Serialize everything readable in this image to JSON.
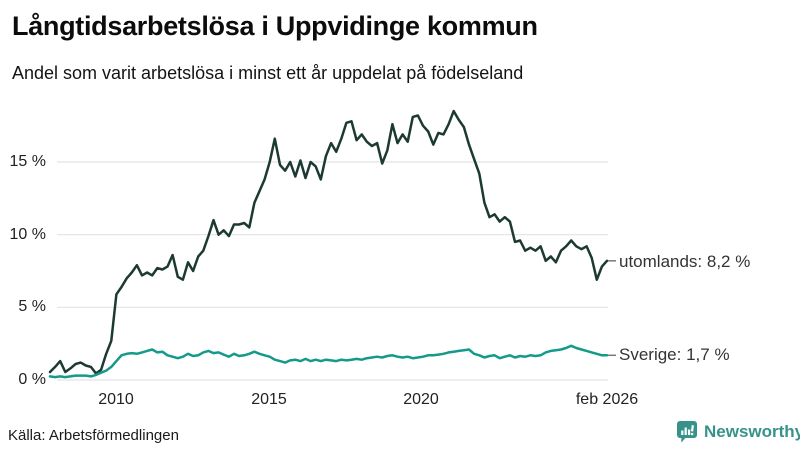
{
  "header": {
    "title": "Långtidsarbetslösa i Uppvidinge kommun",
    "subtitle": "Andel som varit arbetslösa i minst ett år uppdelat på födelseland"
  },
  "footer": {
    "source": "Källa: Arbetsförmedlingen",
    "brand_name": "Newsworthy",
    "brand_icon": "newsworthy-speech-bubble-bar-chart-icon"
  },
  "colors": {
    "utomlands_line": "#1c3a32",
    "sverige_line": "#149a89",
    "grid": "#e3e3e6",
    "axis_text": "#222222",
    "label_text": "#333333",
    "connector_dash": "#7a7a7a",
    "brand_teal": "#37928a",
    "background": "#ffffff"
  },
  "chart_data": {
    "type": "line",
    "title": "Långtidsarbetslösa i Uppvidinge kommun",
    "subtitle": "Andel som varit arbetslösa i minst ett år uppdelat på födelseland",
    "source": "Källa: Arbetsförmedlingen",
    "unit": "%",
    "grid": true,
    "legend_position": "end-of-line",
    "x_start": 2007.9,
    "x_step": 0.1667,
    "x_axis": {
      "range": [
        2007.9,
        2026.07
      ],
      "ticks": [
        {
          "x": 2010,
          "label": "2010"
        },
        {
          "x": 2015,
          "label": "2015"
        },
        {
          "x": 2020,
          "label": "2020"
        },
        {
          "x": 2026.083,
          "label": "feb 2026"
        }
      ]
    },
    "y_axis": {
      "range": [
        0,
        19
      ],
      "ticks": [
        {
          "v": 15,
          "label": "15 %"
        },
        {
          "v": 10,
          "label": "10 %"
        },
        {
          "v": 5,
          "label": "5 %"
        },
        {
          "v": 0,
          "label": "0 %"
        }
      ]
    },
    "series": [
      {
        "name": "utomlands",
        "end_label": "utomlands: 8,2 %",
        "end_value": 8.2,
        "color": "#1c3a32",
        "values": [
          0.55,
          0.9,
          1.3,
          0.55,
          0.8,
          1.1,
          1.2,
          1.0,
          0.9,
          0.45,
          0.7,
          1.8,
          2.7,
          5.9,
          6.4,
          7.0,
          7.4,
          7.9,
          7.2,
          7.4,
          7.2,
          7.7,
          7.6,
          7.8,
          8.6,
          7.1,
          6.9,
          8.1,
          7.5,
          8.5,
          8.9,
          9.9,
          11.0,
          10.0,
          10.3,
          9.9,
          10.7,
          10.7,
          10.8,
          10.5,
          12.2,
          13.0,
          13.8,
          15.0,
          16.6,
          14.8,
          14.4,
          15.0,
          14.0,
          15.1,
          13.9,
          15.0,
          14.7,
          13.8,
          15.4,
          16.3,
          15.7,
          16.6,
          17.7,
          17.8,
          16.5,
          16.9,
          16.4,
          16.1,
          16.3,
          14.9,
          15.8,
          17.6,
          16.3,
          16.9,
          16.4,
          18.1,
          18.2,
          17.5,
          17.1,
          16.2,
          17.0,
          16.9,
          17.6,
          18.5,
          17.9,
          17.4,
          16.2,
          15.2,
          14.2,
          12.2,
          11.2,
          11.4,
          10.9,
          11.2,
          10.9,
          9.5,
          9.6,
          8.9,
          9.1,
          8.9,
          9.2,
          8.2,
          8.5,
          8.1,
          8.9,
          9.2,
          9.6,
          9.2,
          9.0,
          9.2,
          8.4,
          6.9,
          7.8,
          8.2
        ]
      },
      {
        "name": "Sverige",
        "end_label": "Sverige: 1,7 %",
        "end_value": 1.7,
        "color": "#149a89",
        "values": [
          0.25,
          0.2,
          0.25,
          0.2,
          0.25,
          0.3,
          0.3,
          0.3,
          0.25,
          0.35,
          0.5,
          0.65,
          0.9,
          1.3,
          1.7,
          1.8,
          1.85,
          1.8,
          1.9,
          2.0,
          2.1,
          1.9,
          1.95,
          1.7,
          1.6,
          1.5,
          1.6,
          1.8,
          1.65,
          1.7,
          1.9,
          2.0,
          1.85,
          1.9,
          1.75,
          1.6,
          1.8,
          1.65,
          1.7,
          1.8,
          1.95,
          1.8,
          1.7,
          1.6,
          1.4,
          1.3,
          1.2,
          1.35,
          1.4,
          1.3,
          1.45,
          1.3,
          1.4,
          1.3,
          1.4,
          1.35,
          1.3,
          1.4,
          1.35,
          1.4,
          1.45,
          1.4,
          1.5,
          1.55,
          1.6,
          1.55,
          1.65,
          1.7,
          1.6,
          1.55,
          1.6,
          1.5,
          1.55,
          1.6,
          1.7,
          1.7,
          1.75,
          1.8,
          1.9,
          1.95,
          2.0,
          2.05,
          2.1,
          1.8,
          1.7,
          1.55,
          1.65,
          1.7,
          1.5,
          1.6,
          1.7,
          1.55,
          1.65,
          1.6,
          1.7,
          1.65,
          1.7,
          1.9,
          2.0,
          2.05,
          2.1,
          2.2,
          2.35,
          2.2,
          2.1,
          2.0,
          1.9,
          1.8,
          1.7,
          1.7
        ]
      }
    ]
  }
}
